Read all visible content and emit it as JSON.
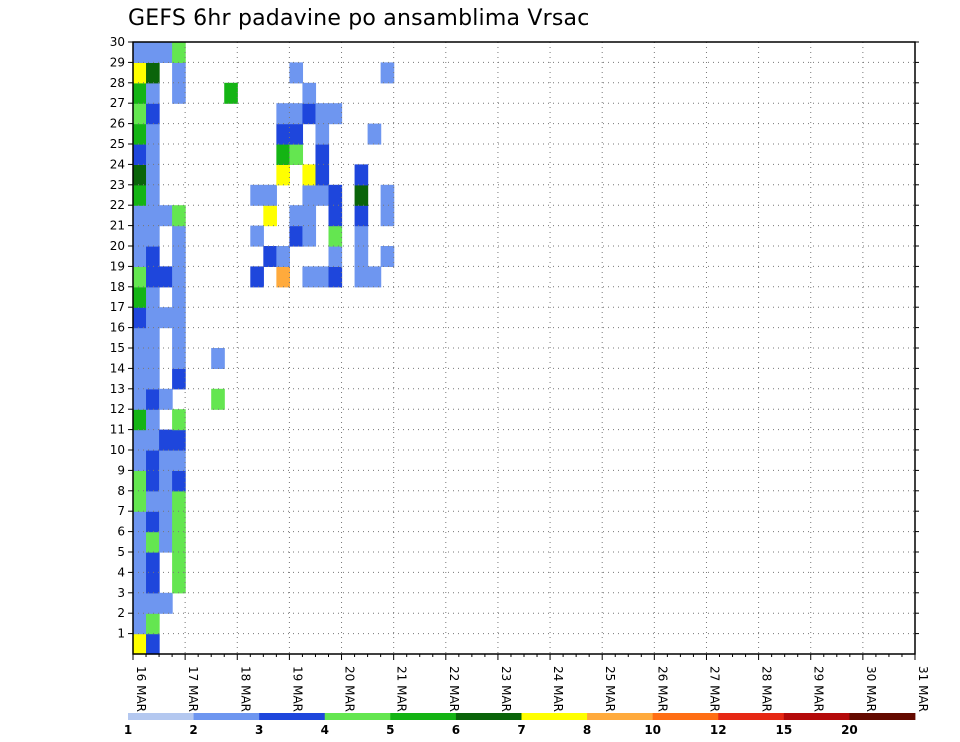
{
  "chart_data": {
    "type": "heatmap",
    "title": "GEFS 6hr padavine po ansamblima Vrsac",
    "xlabel": "",
    "ylabel": "",
    "x_ticks": [
      "16 MAR",
      "17 MAR",
      "18 MAR",
      "19 MAR",
      "20 MAR",
      "21 MAR",
      "22 MAR",
      "23 MAR",
      "24 MAR",
      "25 MAR",
      "26 MAR",
      "27 MAR",
      "28 MAR",
      "29 MAR",
      "30 MAR",
      "31 MAR"
    ],
    "x_range": [
      0,
      60
    ],
    "y_ticks": [
      1,
      2,
      3,
      4,
      5,
      6,
      7,
      8,
      9,
      10,
      11,
      12,
      13,
      14,
      15,
      16,
      17,
      18,
      19,
      20,
      21,
      22,
      23,
      24,
      25,
      26,
      27,
      28,
      29,
      30
    ],
    "y_range": [
      0,
      30
    ],
    "grid": "dotted",
    "legend": {
      "labels": [
        "1",
        "2",
        "3",
        "4",
        "5",
        "6",
        "7",
        "8",
        "10",
        "12",
        "15",
        "20"
      ],
      "colors": [
        "#b4c8f0",
        "#6e96f0",
        "#1e46dc",
        "#64e650",
        "#14b414",
        "#0a640a",
        "#ffff00",
        "#ffaa3c",
        "#ff6e14",
        "#e62814",
        "#b40a0a",
        "#640a00"
      ]
    },
    "levels_colors": [
      "#b4c8f0",
      "#6e96f0",
      "#1e46dc",
      "#64e650",
      "#14b414",
      "#0a640a",
      "#ffff00",
      "#ffaa3c",
      "#ff6e14",
      "#e62814",
      "#b40a0a",
      "#640a00"
    ],
    "cells": [
      [
        0,
        0,
        6
      ],
      [
        1,
        0,
        1
      ],
      [
        2,
        0,
        1
      ],
      [
        3,
        0,
        1
      ],
      [
        4,
        0,
        1
      ],
      [
        5,
        0,
        1
      ],
      [
        6,
        0,
        1
      ],
      [
        7,
        0,
        3
      ],
      [
        8,
        0,
        3
      ],
      [
        9,
        0,
        1
      ],
      [
        10,
        0,
        1
      ],
      [
        11,
        0,
        4
      ],
      [
        12,
        0,
        1
      ],
      [
        13,
        0,
        1
      ],
      [
        14,
        0,
        1
      ],
      [
        15,
        0,
        1
      ],
      [
        16,
        0,
        2
      ],
      [
        17,
        0,
        4
      ],
      [
        18,
        0,
        3
      ],
      [
        19,
        0,
        1
      ],
      [
        20,
        0,
        1
      ],
      [
        21,
        0,
        1
      ],
      [
        22,
        0,
        4
      ],
      [
        23,
        0,
        5
      ],
      [
        24,
        0,
        2
      ],
      [
        25,
        0,
        4
      ],
      [
        26,
        0,
        3
      ],
      [
        27,
        0,
        4
      ],
      [
        28,
        0,
        6
      ],
      [
        29,
        0,
        1
      ],
      [
        0,
        1,
        2
      ],
      [
        1,
        1,
        3
      ],
      [
        2,
        1,
        1
      ],
      [
        3,
        1,
        2
      ],
      [
        4,
        1,
        2
      ],
      [
        5,
        1,
        3
      ],
      [
        6,
        1,
        2
      ],
      [
        7,
        1,
        1
      ],
      [
        8,
        1,
        2
      ],
      [
        9,
        1,
        2
      ],
      [
        10,
        1,
        1
      ],
      [
        11,
        1,
        1
      ],
      [
        12,
        1,
        2
      ],
      [
        13,
        1,
        1
      ],
      [
        14,
        1,
        1
      ],
      [
        15,
        1,
        1
      ],
      [
        16,
        1,
        1
      ],
      [
        17,
        1,
        1
      ],
      [
        18,
        1,
        2
      ],
      [
        19,
        1,
        2
      ],
      [
        20,
        1,
        1
      ],
      [
        21,
        1,
        1
      ],
      [
        22,
        1,
        1
      ],
      [
        23,
        1,
        1
      ],
      [
        24,
        1,
        1
      ],
      [
        25,
        1,
        1
      ],
      [
        26,
        1,
        2
      ],
      [
        27,
        1,
        1
      ],
      [
        28,
        1,
        5
      ],
      [
        29,
        1,
        1
      ],
      [
        2,
        2,
        1
      ],
      [
        5,
        2,
        1
      ],
      [
        6,
        2,
        1
      ],
      [
        7,
        2,
        1
      ],
      [
        8,
        2,
        1
      ],
      [
        9,
        2,
        1
      ],
      [
        10,
        2,
        2
      ],
      [
        12,
        2,
        1
      ],
      [
        16,
        2,
        1
      ],
      [
        18,
        2,
        2
      ],
      [
        21,
        2,
        1
      ],
      [
        29,
        2,
        1
      ],
      [
        3,
        3,
        3
      ],
      [
        4,
        3,
        3
      ],
      [
        5,
        3,
        3
      ],
      [
        6,
        3,
        3
      ],
      [
        7,
        3,
        3
      ],
      [
        8,
        3,
        2
      ],
      [
        9,
        3,
        1
      ],
      [
        10,
        3,
        2
      ],
      [
        11,
        3,
        3
      ],
      [
        13,
        3,
        2
      ],
      [
        14,
        3,
        1
      ],
      [
        15,
        3,
        1
      ],
      [
        16,
        3,
        1
      ],
      [
        17,
        3,
        1
      ],
      [
        18,
        3,
        1
      ],
      [
        19,
        3,
        1
      ],
      [
        20,
        3,
        1
      ],
      [
        21,
        3,
        3
      ],
      [
        27,
        3,
        1
      ],
      [
        28,
        3,
        1
      ],
      [
        29,
        3,
        3
      ],
      [
        12,
        6,
        3
      ],
      [
        14,
        6,
        1
      ],
      [
        27,
        7,
        4
      ],
      [
        18,
        9,
        2
      ],
      [
        20,
        9,
        1
      ],
      [
        22,
        9,
        1
      ],
      [
        19,
        10,
        2
      ],
      [
        21,
        10,
        6
      ],
      [
        22,
        10,
        1
      ],
      [
        18,
        11,
        7
      ],
      [
        19,
        11,
        1
      ],
      [
        23,
        11,
        6
      ],
      [
        24,
        11,
        4
      ],
      [
        25,
        11,
        2
      ],
      [
        26,
        11,
        1
      ],
      [
        20,
        12,
        2
      ],
      [
        21,
        12,
        1
      ],
      [
        24,
        12,
        3
      ],
      [
        25,
        12,
        2
      ],
      [
        26,
        12,
        1
      ],
      [
        28,
        12,
        1
      ],
      [
        18,
        13,
        1
      ],
      [
        20,
        13,
        1
      ],
      [
        21,
        13,
        1
      ],
      [
        22,
        13,
        1
      ],
      [
        23,
        13,
        6
      ],
      [
        26,
        13,
        2
      ],
      [
        27,
        13,
        1
      ],
      [
        18,
        14,
        1
      ],
      [
        22,
        14,
        1
      ],
      [
        23,
        14,
        2
      ],
      [
        24,
        14,
        2
      ],
      [
        25,
        14,
        1
      ],
      [
        26,
        14,
        1
      ],
      [
        18,
        15,
        2
      ],
      [
        19,
        15,
        1
      ],
      [
        20,
        15,
        3
      ],
      [
        21,
        15,
        2
      ],
      [
        22,
        15,
        2
      ],
      [
        26,
        15,
        1
      ],
      [
        18,
        17,
        1
      ],
      [
        19,
        17,
        1
      ],
      [
        20,
        17,
        1
      ],
      [
        21,
        17,
        2
      ],
      [
        22,
        17,
        5
      ],
      [
        23,
        17,
        2
      ],
      [
        18,
        18,
        1
      ],
      [
        25,
        18,
        1
      ],
      [
        19,
        19,
        1
      ],
      [
        21,
        19,
        1
      ],
      [
        22,
        19,
        1
      ],
      [
        28,
        19,
        1
      ]
    ]
  }
}
